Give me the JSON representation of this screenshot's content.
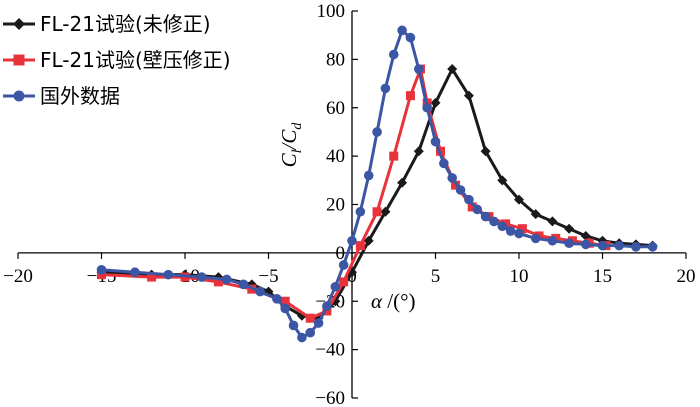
{
  "chart_data": {
    "type": "line",
    "title": "",
    "xlabel": "α /(°)",
    "ylabel": "Cl/Cd",
    "xlim": [
      -20,
      20
    ],
    "ylim": [
      -60,
      100
    ],
    "x_ticks": [
      -20,
      -15,
      -10,
      -5,
      0,
      5,
      10,
      15,
      20
    ],
    "x_tick_labels": [
      "−20",
      "−15",
      "−10",
      "−5",
      "0",
      "5",
      "10",
      "15",
      "20"
    ],
    "y_ticks": [
      -60,
      -40,
      -20,
      0,
      20,
      40,
      60,
      80,
      100
    ],
    "y_tick_labels": [
      "−60",
      "−40",
      "−20",
      "0",
      "20",
      "40",
      "60",
      "80",
      "100"
    ],
    "grid": false,
    "legend_position": "top-left",
    "series": [
      {
        "name": "FL-21试验(未修正)",
        "color": "#1a1a1a",
        "marker": "diamond",
        "x": [
          -15,
          -12,
          -10,
          -8,
          -6,
          -5,
          -4,
          -3,
          -2,
          -1,
          0,
          1,
          2,
          3,
          4,
          5,
          6,
          7,
          8,
          9,
          10,
          11,
          12,
          13,
          14,
          15,
          16,
          17,
          18
        ],
        "y": [
          -8,
          -9,
          -9,
          -10,
          -13,
          -16,
          -22,
          -26,
          -27,
          -20,
          -8,
          5,
          17,
          29,
          42,
          62,
          76,
          65,
          42,
          30,
          22,
          16,
          13,
          10,
          7,
          5,
          4,
          3.5,
          3
        ]
      },
      {
        "name": "FL-21试验(壁压修正)",
        "color": "#e8323c",
        "marker": "square",
        "x": [
          -15,
          -12,
          -10,
          -8,
          -6,
          -4,
          -2.5,
          -1.5,
          -0.5,
          0.5,
          1.5,
          2.5,
          3.5,
          4.1,
          4.5,
          5.3,
          6.2,
          7.2,
          8.2,
          9.2,
          10.2,
          11.2,
          12.2,
          13.2,
          14.2,
          15.2
        ],
        "y": [
          -9,
          -10,
          -10,
          -12,
          -15,
          -20,
          -27,
          -24,
          -12,
          3,
          17,
          40,
          65,
          76,
          62,
          42,
          28,
          19,
          15,
          12,
          10,
          7,
          6,
          5,
          4,
          3
        ]
      },
      {
        "name": "国外数据",
        "color": "#3b56a4",
        "marker": "circle",
        "x": [
          -15,
          -13,
          -11,
          -9,
          -7.5,
          -6.5,
          -5.5,
          -4.5,
          -4,
          -3.5,
          -3,
          -2.5,
          -2,
          -1.5,
          -1,
          -0.5,
          0,
          0.5,
          1,
          1.5,
          2,
          2.5,
          3,
          3.5,
          4,
          4.5,
          5,
          5.5,
          6,
          6.5,
          7,
          7.5,
          8,
          8.5,
          9,
          9.5,
          10,
          11,
          12,
          13,
          14,
          15,
          16,
          17,
          18
        ],
        "y": [
          -7,
          -8,
          -9,
          -10,
          -11,
          -13,
          -16,
          -19,
          -23,
          -30,
          -35,
          -33,
          -29,
          -22,
          -14,
          -5,
          5,
          17,
          32,
          50,
          68,
          82,
          92,
          89,
          76,
          60,
          46,
          37,
          31,
          26,
          22,
          18,
          15,
          13,
          11,
          9,
          8,
          6,
          5,
          4,
          3.5,
          3,
          3,
          2.5,
          2.5
        ]
      }
    ]
  }
}
